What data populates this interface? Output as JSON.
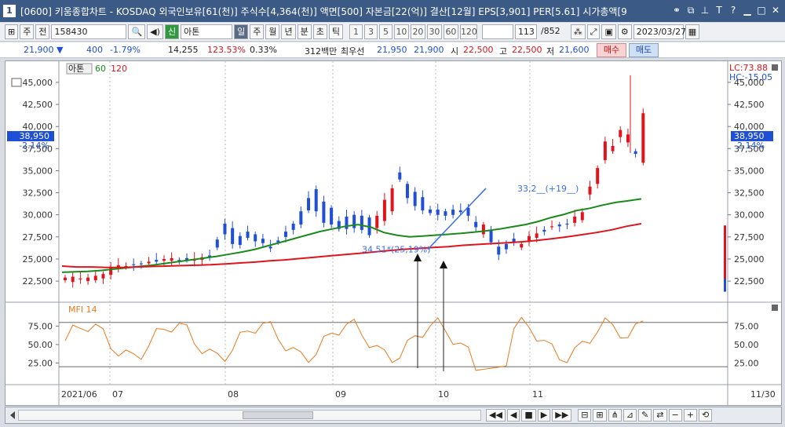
{
  "window": {
    "app_number": "1",
    "title": "[0600] 키움종합차트 - KOSDAQ 외국인보유[61(천)] 주식수[4,364(천)] 액면[500] 자본금[22(억)] 결산[12월] EPS[3,901] PER[5.61] 시가총액[9"
  },
  "toolbar": {
    "market_label": "주",
    "code_label": "전",
    "stock_code": "158430",
    "name_badge": "신",
    "stock_name": "아톤",
    "periods": [
      "일",
      "주",
      "월",
      "년",
      "분",
      "초",
      "틱"
    ],
    "active_period": "일",
    "intervals": [
      "1",
      "3",
      "5",
      "10",
      "20",
      "30",
      "60",
      "120"
    ],
    "count": "113",
    "total": "/852",
    "date": "2023/03/27"
  },
  "quote": {
    "price": "21,900",
    "change": "400",
    "change_pct": "-1.79%",
    "volume": "14,255",
    "vol_ratio": "123.53%",
    "turnover": "0.33%",
    "amount": "312백만",
    "bid_label": "최우선",
    "bid": "21,950",
    "ask": "21,900",
    "open_label": "시",
    "open": "22,500",
    "high_label": "고",
    "high": "22,500",
    "low_label": "저",
    "low": "21,600",
    "buy_button": "매수",
    "sell_button": "매도"
  },
  "chart": {
    "legend": {
      "name": "아톤",
      "ma_short": "60",
      "ma_long": "120"
    },
    "price_ticks": [
      "45,000",
      "42,500",
      "40,000",
      "37,500",
      "35,000",
      "32,500",
      "30,000",
      "27,500",
      "25,000",
      "22,500"
    ],
    "current_price": "38,950",
    "current_pct": "-2.14%",
    "lc_label": "LC:73.88",
    "hc_label": "HC:-15.05",
    "annotation_high": "33,2__(+19__)",
    "annotation_low": "34,51*(25,19%)",
    "mfi_label": "MFI 14",
    "mfi_ticks": [
      "75.00",
      "50.00",
      "25.00"
    ],
    "x_labels": [
      "2021/06",
      "07",
      "08",
      "09",
      "10",
      "11",
      "11/30"
    ],
    "colors": {
      "up": "#e0141c",
      "down": "#1f4fd6",
      "ma_short": "#1a8a1a",
      "ma_long": "#e0141c",
      "mfi": "#e87a1e"
    }
  },
  "chart_data": {
    "type": "line",
    "title": "",
    "ylabel": "",
    "ylim": [
      21000,
      46500
    ],
    "price_series": [
      [
        22600,
        22900,
        22400,
        23000,
        22700,
        22800,
        22500,
        22900,
        22600,
        23100,
        22800,
        23300,
        23200,
        24100,
        23900,
        24300,
        24100,
        24200,
        24400,
        24300,
        24500,
        24400,
        24500,
        24700,
        24900,
        24700,
        24800,
        25000,
        24800,
        25100,
        24900,
        24800,
        25100,
        24900,
        24800,
        25000,
        24900,
        25200,
        25400,
        25200,
        27200,
        26300,
        29000,
        27800,
        28500,
        26700,
        27600,
        26600,
        28100,
        27400,
        27800,
        27000,
        27300,
        26800,
        26400,
        26200,
        27100,
        26900,
        28100,
        27500,
        29000,
        28300,
        30400,
        28900,
        31900,
        30500,
        32900,
        30400,
        31500,
        29100,
        30800,
        28900,
        29300,
        28400,
        29800,
        28400,
        30000,
        28500,
        29900,
        28300,
        29700,
        27700,
        28500,
        29900,
        29300,
        31700,
        30400,
        33000,
        34800,
        34000,
        33500,
        31900,
        32600,
        31000,
        32000,
        30500,
        30600,
        30200,
        30600,
        30000,
        30400,
        29900,
        30600,
        30000,
        30500,
        30300,
        30800,
        29900,
        29200,
        28600,
        27800,
        28900,
        28200,
        26900,
        26400,
        25500,
        26700,
        26100,
        27300,
        26900,
        26300,
        26700,
        27100,
        27600,
        27400,
        27900,
        28300,
        28100,
        28600,
        28700,
        28900,
        28700,
        29000,
        28900,
        29100,
        29800,
        29400,
        30300,
        32300,
        33200,
        33500,
        35300,
        36200,
        38300,
        37200,
        37800,
        38800,
        39600,
        38200,
        39100,
        37200,
        36900,
        35900,
        41500,
        38950
      ],
      "opens_closes_are_alternating_approximations"
    ],
    "ma_short": [
      23500,
      23550,
      23600,
      23700,
      23850,
      24000,
      24150,
      24300,
      24500,
      24700,
      24900,
      25100,
      25300,
      25550,
      25800,
      26100,
      26500,
      26900,
      27300,
      27700,
      28100,
      28400,
      28700,
      28900,
      28600,
      28000,
      27700,
      27500,
      27600,
      27700,
      27800,
      27900,
      28050,
      28200,
      28400,
      28650,
      28900,
      29250,
      29700,
      30050,
      30500,
      30750,
      31100,
      31400,
      31600,
      31800
    ],
    "ma_long": [
      24200,
      24100,
      24100,
      24050,
      24050,
      24100,
      24150,
      24200,
      24250,
      24300,
      24350,
      24450,
      24550,
      24650,
      24800,
      24900,
      25050,
      25200,
      25350,
      25500,
      25650,
      25800,
      25950,
      26100,
      26200,
      26300,
      26400,
      26550,
      26650,
      26750,
      26850,
      26950,
      27100,
      27300,
      27500,
      27750,
      28000,
      28300,
      28700,
      29000
    ],
    "mfi_range": [
      0,
      100
    ],
    "mfi_overbought": 80,
    "mfi_oversold": 20
  }
}
